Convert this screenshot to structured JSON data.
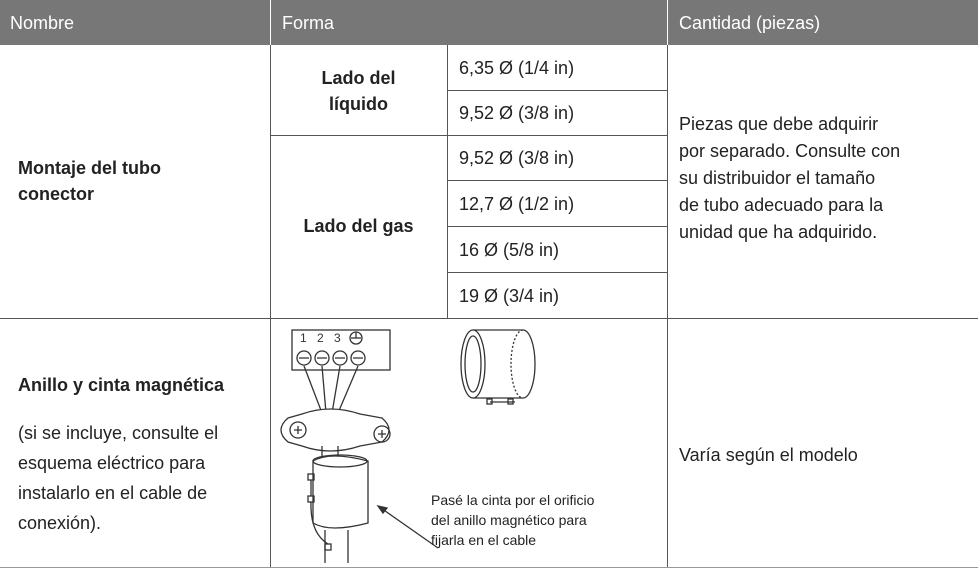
{
  "table": {
    "header": [
      "Nombre",
      "Forma",
      "Cantidad (piezas)"
    ],
    "rows": [
      {
        "nombre": [
          "Montaje del tubo",
          "conector"
        ],
        "forma": [
          {
            "label": [
              "Lado del",
              "líquido"
            ],
            "sizes": [
              "6,35 Ø (1/4 in)",
              "9,52 Ø (3/8 in)"
            ]
          },
          {
            "label": [
              "Lado del gas"
            ],
            "sizes": [
              "9,52 Ø (3/8 in)",
              "12,7 Ø (1/2 in)",
              "16 Ø (5/8 in)",
              "19 Ø (3/4 in)"
            ]
          }
        ],
        "cantidad": [
          "Piezas que debe adquirir",
          "por separado. Consulte con",
          "su distribuidor el tamaño",
          "de tubo adecuado para la",
          "unidad que ha adquirido."
        ]
      },
      {
        "nombre": [
          "Anillo y cinta magnética"
        ],
        "nota": [
          "(si se incluye, consulte el",
          "esquema eléctrico para",
          "instalarlo en el cable de",
          "conexión)."
        ],
        "diagram": {
          "terminals": [
            "1",
            "2",
            "3"
          ],
          "caption": [
            "Pasé la cinta por el orificio",
            "del anillo magnético para",
            "fijarla en el cable"
          ]
        },
        "cantidad": [
          "Varía según el modelo"
        ]
      }
    ]
  }
}
